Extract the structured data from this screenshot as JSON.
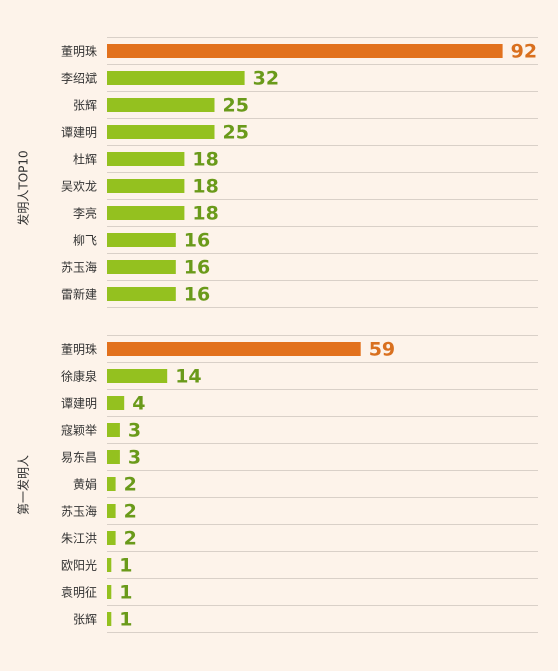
{
  "colors": {
    "background": "#fdf3ea",
    "highlight_bar": "#e2711d",
    "highlight_label": "#d9701f",
    "normal_bar": "#94c11f",
    "normal_label": "#6a9a1a",
    "gridline": "#d9d0c8"
  },
  "chart_data": [
    {
      "type": "bar",
      "orientation": "horizontal",
      "group_label": "发明人TOP10",
      "categories": [
        "董明珠",
        "李绍斌",
        "张辉",
        "谭建明",
        "杜辉",
        "吴欢龙",
        "李亮",
        "柳飞",
        "苏玉海",
        "雷新建"
      ],
      "values": [
        92,
        32,
        25,
        25,
        18,
        18,
        18,
        16,
        16,
        16
      ],
      "highlight": [
        0
      ],
      "grid": true
    },
    {
      "type": "bar",
      "orientation": "horizontal",
      "group_label": "第一发明人",
      "categories": [
        "董明珠",
        "徐康泉",
        "谭建明",
        "寇颖举",
        "易东昌",
        "黄娟",
        "苏玉海",
        "朱江洪",
        "欧阳光",
        "袁明征",
        "张辉"
      ],
      "values": [
        59,
        14,
        4,
        3,
        3,
        2,
        2,
        2,
        1,
        1,
        1
      ],
      "highlight": [
        0
      ],
      "grid": true
    }
  ]
}
